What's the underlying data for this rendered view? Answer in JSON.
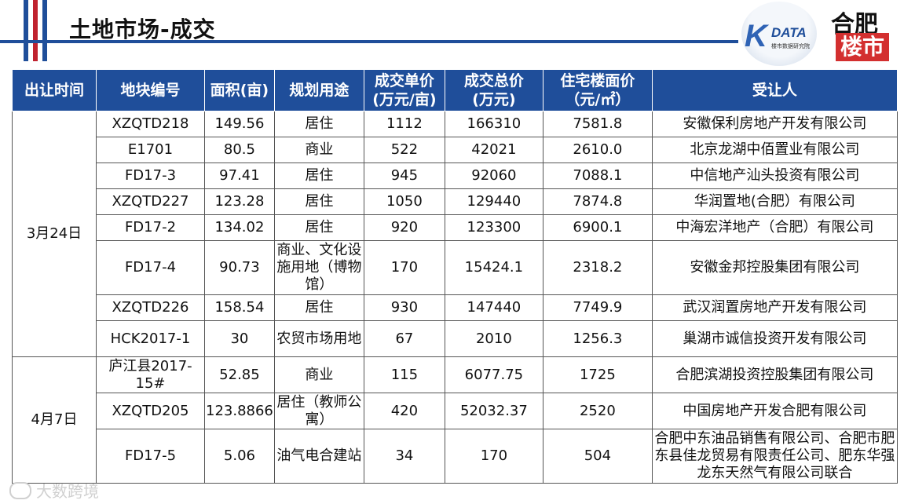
{
  "title": "土地市场-成交",
  "logos": {
    "kdata_mark": "K",
    "kdata_text": "DATA",
    "kdata_sub": "楼市数据研究院",
    "hefei_top": "合肥",
    "hefei_bottom": "楼市"
  },
  "watermark": "大数跨境",
  "columns": [
    "出让时间",
    "地块编号",
    "面积(亩)",
    "规划用途",
    "成交单价\n(万元/亩)",
    "成交总价\n(万元)",
    "住宅楼面价\n（元/㎡）",
    "受让人"
  ],
  "groups": [
    {
      "date": "3月24日",
      "rows": [
        {
          "id": "XZQTD218",
          "area": "149.56",
          "use": "居住",
          "unit": "1112",
          "total": "166310",
          "floor": "7581.8",
          "buyer": "安徽保利房地产开发有限公司"
        },
        {
          "id": "E1701",
          "area": "80.5",
          "use": "商业",
          "unit": "522",
          "total": "42021",
          "floor": "2610.0",
          "buyer": "北京龙湖中佰置业有限公司"
        },
        {
          "id": "FD17-3",
          "area": "97.41",
          "use": "居住",
          "unit": "945",
          "total": "92060",
          "floor": "7088.1",
          "buyer": "中信地产汕头投资有限公司"
        },
        {
          "id": "XZQTD227",
          "area": "123.28",
          "use": "居住",
          "unit": "1050",
          "total": "129440",
          "floor": "7874.8",
          "buyer": "华润置地(合肥）有限公司"
        },
        {
          "id": "FD17-2",
          "area": "134.02",
          "use": "居住",
          "unit": "920",
          "total": "123300",
          "floor": "6900.1",
          "buyer": "中海宏洋地产（合肥）有限公司"
        },
        {
          "id": "FD17-4",
          "area": "90.73",
          "use": "商业、文化设施用地（博物馆）",
          "unit": "170",
          "total": "15424.1",
          "floor": "2318.2",
          "buyer": "安徽金邦控股集团有限公司"
        },
        {
          "id": "XZQTD226",
          "area": "158.54",
          "use": "居住",
          "unit": "930",
          "total": "147440",
          "floor": "7749.9",
          "buyer": "武汉润置房地产开发有限公司"
        },
        {
          "id": "HCK2017-1",
          "area": "30",
          "use": "农贸市场用地",
          "unit": "67",
          "total": "2010",
          "floor": "1256.3",
          "buyer": "巢湖市诚信投资开发有限公司"
        }
      ]
    },
    {
      "date": "4月7日",
      "rows": [
        {
          "id": "庐江县2017-15#",
          "area": "52.85",
          "use": "商业",
          "unit": "115",
          "total": "6077.75",
          "floor": "1725",
          "buyer": "合肥滨湖投资控股集团有限公司"
        },
        {
          "id": "XZQTD205",
          "area": "123.8866",
          "use": "居住（教师公寓）",
          "unit": "420",
          "total": "52032.37",
          "floor": "2520",
          "buyer": "中国房地产开发合肥有限公司"
        },
        {
          "id": "FD17-5",
          "area": "5.06",
          "use": "油气电合建站",
          "unit": "34",
          "total": "170",
          "floor": "504",
          "buyer": "合肥中东油品销售有限公司、合肥市肥东县佳龙贸易有限责任公司、肥东华强龙东天然气有限公司联合"
        }
      ]
    }
  ]
}
